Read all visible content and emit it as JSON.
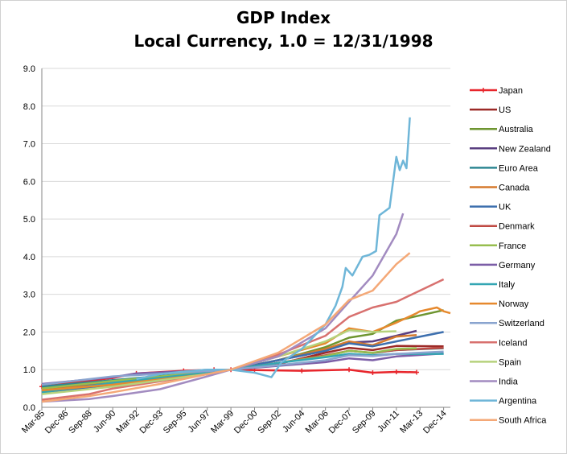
{
  "chart_data": {
    "type": "line",
    "title": "GDP Index",
    "subtitle": "Local Currency, 1.0 = 12/31/1998",
    "xlabel": "",
    "ylabel": "",
    "ylim": [
      0,
      9
    ],
    "y_ticks": [
      "0.0",
      "1.0",
      "2.0",
      "3.0",
      "4.0",
      "5.0",
      "6.0",
      "7.0",
      "8.0",
      "9.0"
    ],
    "x_tick_labels": [
      "Mar-85",
      "Dec-86",
      "Sep-88",
      "Jun-90",
      "Mar-92",
      "Dec-93",
      "Sep-95",
      "Jun-97",
      "Mar-99",
      "Dec-00",
      "Sep-02",
      "Jun-04",
      "Mar-06",
      "Dec-07",
      "Sep-09",
      "Jun-11",
      "Mar-13",
      "Dec-14"
    ],
    "xlim": [
      "Mar-85",
      "Jun-15"
    ],
    "grid": "horizontal",
    "legend_position": "right",
    "series": [
      {
        "name": "Japan",
        "color": "#e8262c",
        "marker": "plus",
        "points": [
          [
            "Mar-85",
            0.55
          ],
          [
            "Jun-90",
            0.78
          ],
          [
            "Mar-92",
            0.9
          ],
          [
            "Sep-95",
            0.97
          ],
          [
            "Dec-97",
            1.0
          ],
          [
            "Mar-99",
            1.0
          ],
          [
            "Dec-00",
            0.99
          ],
          [
            "Jun-04",
            0.97
          ],
          [
            "Dec-07",
            1.0
          ],
          [
            "Sep-09",
            0.92
          ],
          [
            "Jun-11",
            0.94
          ],
          [
            "Dec-12",
            0.93
          ]
        ]
      },
      {
        "name": "US",
        "color": "#9c2a27",
        "points": [
          [
            "Mar-85",
            0.45
          ],
          [
            "Jun-90",
            0.62
          ],
          [
            "Jun-97",
            0.91
          ],
          [
            "Mar-99",
            1.0
          ],
          [
            "Sep-02",
            1.15
          ],
          [
            "Mar-06",
            1.45
          ],
          [
            "Dec-07",
            1.58
          ],
          [
            "Sep-09",
            1.52
          ],
          [
            "Jun-11",
            1.63
          ],
          [
            "Dec-14",
            1.62
          ]
        ]
      },
      {
        "name": "Australia",
        "color": "#6e9530",
        "points": [
          [
            "Mar-85",
            0.4
          ],
          [
            "Jun-90",
            0.6
          ],
          [
            "Jun-97",
            0.9
          ],
          [
            "Mar-99",
            1.0
          ],
          [
            "Sep-02",
            1.25
          ],
          [
            "Mar-06",
            1.6
          ],
          [
            "Dec-07",
            1.85
          ],
          [
            "Sep-09",
            1.95
          ],
          [
            "Jun-11",
            2.3
          ],
          [
            "Dec-14",
            2.58
          ]
        ]
      },
      {
        "name": "New Zealand",
        "color": "#5a3e80",
        "points": [
          [
            "Mar-85",
            0.5
          ],
          [
            "Jun-90",
            0.7
          ],
          [
            "Jun-97",
            0.95
          ],
          [
            "Mar-99",
            1.0
          ],
          [
            "Sep-02",
            1.25
          ],
          [
            "Mar-06",
            1.5
          ],
          [
            "Dec-07",
            1.72
          ],
          [
            "Sep-09",
            1.75
          ],
          [
            "Jun-11",
            1.9
          ],
          [
            "Dec-12",
            2.03
          ]
        ]
      },
      {
        "name": "Euro Area",
        "color": "#2e8792",
        "points": [
          [
            "Mar-85",
            0.55
          ],
          [
            "Jun-90",
            0.72
          ],
          [
            "Jun-97",
            0.94
          ],
          [
            "Mar-99",
            1.0
          ],
          [
            "Sep-02",
            1.18
          ],
          [
            "Mar-06",
            1.36
          ],
          [
            "Dec-07",
            1.5
          ],
          [
            "Sep-09",
            1.44
          ],
          [
            "Jun-11",
            1.52
          ],
          [
            "Dec-14",
            1.57
          ]
        ]
      },
      {
        "name": "Canada",
        "color": "#d57a2e",
        "points": [
          [
            "Mar-85",
            0.45
          ],
          [
            "Jun-90",
            0.63
          ],
          [
            "Jun-97",
            0.9
          ],
          [
            "Mar-99",
            1.0
          ],
          [
            "Sep-02",
            1.25
          ],
          [
            "Mar-06",
            1.55
          ],
          [
            "Dec-07",
            1.75
          ],
          [
            "Sep-09",
            1.65
          ],
          [
            "Jun-11",
            1.88
          ],
          [
            "Dec-12",
            1.92
          ]
        ]
      },
      {
        "name": "UK",
        "color": "#3d6fae",
        "points": [
          [
            "Mar-85",
            0.4
          ],
          [
            "Jun-90",
            0.6
          ],
          [
            "Jun-97",
            0.9
          ],
          [
            "Mar-99",
            1.0
          ],
          [
            "Sep-02",
            1.25
          ],
          [
            "Mar-06",
            1.5
          ],
          [
            "Dec-07",
            1.7
          ],
          [
            "Sep-09",
            1.62
          ],
          [
            "Jun-11",
            1.75
          ],
          [
            "Dec-14",
            2.0
          ]
        ]
      },
      {
        "name": "Denmark",
        "color": "#bf4a43",
        "points": [
          [
            "Mar-85",
            0.5
          ],
          [
            "Jun-90",
            0.68
          ],
          [
            "Jun-97",
            0.93
          ],
          [
            "Mar-99",
            1.0
          ],
          [
            "Sep-02",
            1.18
          ],
          [
            "Mar-06",
            1.38
          ],
          [
            "Dec-07",
            1.5
          ],
          [
            "Sep-09",
            1.45
          ],
          [
            "Jun-11",
            1.52
          ],
          [
            "Dec-14",
            1.58
          ]
        ]
      },
      {
        "name": "France",
        "color": "#97be4f",
        "points": [
          [
            "Mar-85",
            0.5
          ],
          [
            "Jun-90",
            0.7
          ],
          [
            "Jun-97",
            0.94
          ],
          [
            "Mar-99",
            1.0
          ],
          [
            "Sep-02",
            1.18
          ],
          [
            "Mar-06",
            1.36
          ],
          [
            "Dec-07",
            1.5
          ],
          [
            "Sep-09",
            1.45
          ],
          [
            "Jun-11",
            1.55
          ],
          [
            "Dec-12",
            1.57
          ]
        ]
      },
      {
        "name": "Germany",
        "color": "#7c5ea7",
        "points": [
          [
            "Mar-85",
            0.62
          ],
          [
            "Jun-90",
            0.8
          ],
          [
            "Mar-92",
            0.9
          ],
          [
            "Jun-97",
            0.98
          ],
          [
            "Mar-99",
            1.0
          ],
          [
            "Sep-02",
            1.1
          ],
          [
            "Mar-06",
            1.2
          ],
          [
            "Dec-07",
            1.3
          ],
          [
            "Sep-09",
            1.25
          ],
          [
            "Jun-11",
            1.35
          ],
          [
            "Dec-14",
            1.43
          ]
        ]
      },
      {
        "name": "Italy",
        "color": "#33a6b3",
        "points": [
          [
            "Mar-85",
            0.4
          ],
          [
            "Jun-90",
            0.65
          ],
          [
            "Jun-97",
            0.92
          ],
          [
            "Mar-99",
            1.0
          ],
          [
            "Sep-02",
            1.18
          ],
          [
            "Mar-06",
            1.33
          ],
          [
            "Dec-07",
            1.42
          ],
          [
            "Sep-09",
            1.38
          ],
          [
            "Jun-11",
            1.42
          ],
          [
            "Dec-14",
            1.42
          ]
        ]
      },
      {
        "name": "Norway",
        "color": "#e6892e",
        "points": [
          [
            "Mar-85",
            0.45
          ],
          [
            "Jun-90",
            0.6
          ],
          [
            "Jun-97",
            0.88
          ],
          [
            "Mar-99",
            1.0
          ],
          [
            "Sep-02",
            1.35
          ],
          [
            "Mar-06",
            1.7
          ],
          [
            "Dec-07",
            2.1
          ],
          [
            "Sep-09",
            2.0
          ],
          [
            "Jun-11",
            2.25
          ],
          [
            "Dec-12",
            2.5
          ],
          [
            "Mar-13",
            2.55
          ],
          [
            "Jun-14",
            2.65
          ],
          [
            "Dec-14",
            2.55
          ],
          [
            "Jun-15",
            2.5
          ]
        ]
      },
      {
        "name": "Switzerland",
        "color": "#8aa4cf",
        "points": [
          [
            "Mar-85",
            0.6
          ],
          [
            "Jun-90",
            0.82
          ],
          [
            "Jun-97",
            0.96
          ],
          [
            "Mar-99",
            1.0
          ],
          [
            "Sep-02",
            1.12
          ],
          [
            "Mar-06",
            1.25
          ],
          [
            "Dec-07",
            1.38
          ],
          [
            "Sep-09",
            1.36
          ],
          [
            "Jun-11",
            1.42
          ],
          [
            "Dec-14",
            1.48
          ]
        ]
      },
      {
        "name": "Iceland",
        "color": "#d8716f",
        "points": [
          [
            "Mar-85",
            0.2
          ],
          [
            "Sep-88",
            0.35
          ],
          [
            "Jun-90",
            0.5
          ],
          [
            "Jun-97",
            0.88
          ],
          [
            "Mar-99",
            1.0
          ],
          [
            "Sep-02",
            1.4
          ],
          [
            "Mar-06",
            1.9
          ],
          [
            "Dec-07",
            2.4
          ],
          [
            "Sep-09",
            2.65
          ],
          [
            "Jun-11",
            2.8
          ],
          [
            "Dec-14",
            3.4
          ]
        ]
      },
      {
        "name": "Spain",
        "color": "#b6d27c",
        "points": [
          [
            "Mar-85",
            0.35
          ],
          [
            "Jun-90",
            0.55
          ],
          [
            "Jun-97",
            0.88
          ],
          [
            "Mar-99",
            1.0
          ],
          [
            "Sep-02",
            1.35
          ],
          [
            "Mar-06",
            1.75
          ],
          [
            "Dec-07",
            2.05
          ],
          [
            "Sep-09",
            2.0
          ],
          [
            "Jun-11",
            2.02
          ]
        ]
      },
      {
        "name": "India",
        "color": "#a28bc0",
        "points": [
          [
            "Mar-85",
            0.15
          ],
          [
            "Sep-88",
            0.22
          ],
          [
            "Jun-90",
            0.3
          ],
          [
            "Dec-93",
            0.48
          ],
          [
            "Jun-97",
            0.82
          ],
          [
            "Mar-99",
            1.0
          ],
          [
            "Sep-02",
            1.35
          ],
          [
            "Mar-06",
            2.1
          ],
          [
            "Dec-07",
            2.8
          ],
          [
            "Sep-09",
            3.5
          ],
          [
            "Jun-11",
            4.6
          ],
          [
            "Dec-11",
            5.15
          ]
        ]
      },
      {
        "name": "Argentina",
        "color": "#6fb6d8",
        "points": [
          [
            "Mar-92",
            0.75
          ],
          [
            "Dec-93",
            0.88
          ],
          [
            "Sep-95",
            0.95
          ],
          [
            "Jun-97",
            1.0
          ],
          [
            "Mar-99",
            1.0
          ],
          [
            "Dec-00",
            0.92
          ],
          [
            "Mar-02",
            0.8
          ],
          [
            "Dec-02",
            1.2
          ],
          [
            "Jun-04",
            1.55
          ],
          [
            "Mar-06",
            2.2
          ],
          [
            "Dec-06",
            2.7
          ],
          [
            "Jun-07",
            3.2
          ],
          [
            "Sep-07",
            3.7
          ],
          [
            "Mar-08",
            3.5
          ],
          [
            "Dec-08",
            4.0
          ],
          [
            "Jun-09",
            4.05
          ],
          [
            "Dec-09",
            4.15
          ],
          [
            "Mar-10",
            5.1
          ],
          [
            "Dec-10",
            5.3
          ],
          [
            "Jun-11",
            6.65
          ],
          [
            "Sep-11",
            6.3
          ],
          [
            "Dec-11",
            6.55
          ],
          [
            "Mar-12",
            6.35
          ],
          [
            "Jun-12",
            7.7
          ]
        ]
      },
      {
        "name": "South Africa",
        "color": "#f4a877",
        "points": [
          [
            "Mar-85",
            0.15
          ],
          [
            "Sep-88",
            0.3
          ],
          [
            "Jun-90",
            0.4
          ],
          [
            "Dec-93",
            0.62
          ],
          [
            "Jun-97",
            0.88
          ],
          [
            "Mar-99",
            1.0
          ],
          [
            "Sep-02",
            1.45
          ],
          [
            "Mar-06",
            2.2
          ],
          [
            "Dec-07",
            2.85
          ],
          [
            "Sep-09",
            3.1
          ],
          [
            "Jun-11",
            3.8
          ],
          [
            "Jun-12",
            4.1
          ]
        ]
      }
    ]
  }
}
